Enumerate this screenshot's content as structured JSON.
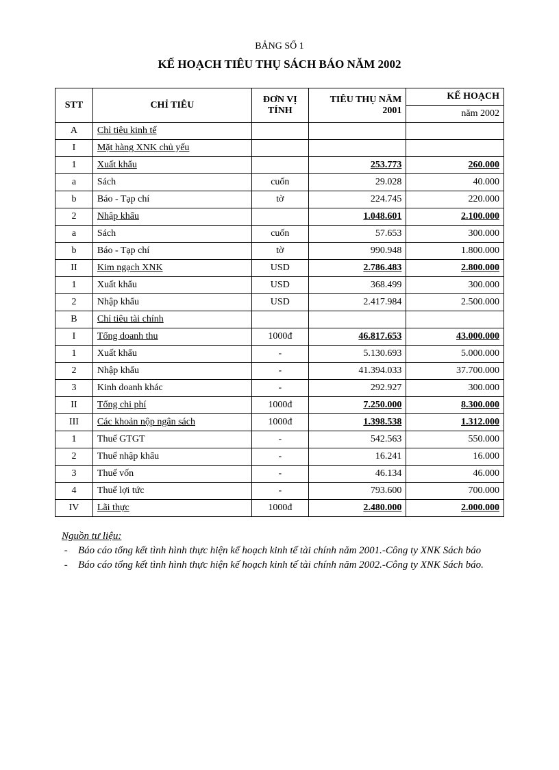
{
  "tableNumber": "BẢNG SỐ 1",
  "title": "KẾ HOẠCH TIÊU THỤ SÁCH BÁO NĂM 2002",
  "headers": {
    "stt": "STT",
    "chitieu": "CHỈ TIÊU",
    "donvi": "ĐƠN VỊ TÍNH",
    "tieuthu": "TIÊU THỤ NĂM 2001",
    "kehoach": "KẾ HOẠCH",
    "kehoachSub": "năm 2002"
  },
  "rows": [
    {
      "stt": "A",
      "ct": "Chỉ tiêu kinh tế",
      "dv": "",
      "v1": "",
      "v2": "",
      "u": true,
      "b": false
    },
    {
      "stt": "I",
      "ct": "Mặt hàng XNK chủ yếu",
      "dv": "",
      "v1": "",
      "v2": "",
      "u": true,
      "b": false
    },
    {
      "stt": "1",
      "ct": "Xuất khẩu",
      "dv": "",
      "v1": "253.773",
      "v2": "260.000",
      "u": true,
      "b": true
    },
    {
      "stt": "a",
      "ct": "Sách",
      "dv": "cuốn",
      "v1": "29.028",
      "v2": "40.000",
      "u": false,
      "b": false
    },
    {
      "stt": "b",
      "ct": "Báo - Tạp chí",
      "dv": "tờ",
      "v1": "224.745",
      "v2": "220.000",
      "u": false,
      "b": false
    },
    {
      "stt": "2",
      "ct": "Nhập khẩu",
      "dv": "",
      "v1": "1.048.601",
      "v2": "2.100.000",
      "u": true,
      "b": true
    },
    {
      "stt": "a",
      "ct": "Sách",
      "dv": "cuốn",
      "v1": "57.653",
      "v2": "300.000",
      "u": false,
      "b": false
    },
    {
      "stt": "b",
      "ct": "Báo - Tạp chí",
      "dv": "tờ",
      "v1": "990.948",
      "v2": "1.800.000",
      "u": false,
      "b": false
    },
    {
      "stt": "II",
      "ct": "Kim ngạch XNK",
      "dv": "USD",
      "v1": "2.786.483",
      "v2": "2.800.000",
      "u": true,
      "b": true
    },
    {
      "stt": "1",
      "ct": "Xuất khẩu",
      "dv": "USD",
      "v1": "368.499",
      "v2": "300.000",
      "u": false,
      "b": false
    },
    {
      "stt": "2",
      "ct": "Nhập khẩu",
      "dv": "USD",
      "v1": "2.417.984",
      "v2": "2.500.000",
      "u": false,
      "b": false
    },
    {
      "stt": "B",
      "ct": "Chỉ tiêu tài chính",
      "dv": "",
      "v1": "",
      "v2": "",
      "u": true,
      "b": false
    },
    {
      "stt": "I",
      "ct": "Tổng doanh thu",
      "dv": "1000đ",
      "v1": "46.817.653",
      "v2": "43.000.000",
      "u": true,
      "b": true
    },
    {
      "stt": "1",
      "ct": "Xuất khẩu",
      "dv": "-",
      "v1": "5.130.693",
      "v2": "5.000.000",
      "u": false,
      "b": false
    },
    {
      "stt": "2",
      "ct": "Nhập khẩu",
      "dv": "-",
      "v1": "41.394.033",
      "v2": "37.700.000",
      "u": false,
      "b": false
    },
    {
      "stt": "3",
      "ct": "Kinh doanh khác",
      "dv": "-",
      "v1": "292.927",
      "v2": "300.000",
      "u": false,
      "b": false
    },
    {
      "stt": "II",
      "ct": "Tổng chi phí",
      "dv": "1000đ",
      "v1": "7.250.000",
      "v2": "8.300.000",
      "u": true,
      "b": true
    },
    {
      "stt": "III",
      "ct": "Các khoản nộp ngân sách",
      "dv": "1000đ",
      "v1": "1.398.538",
      "v2": "1.312.000",
      "u": true,
      "b": true
    },
    {
      "stt": "1",
      "ct": "Thuế GTGT",
      "dv": "-",
      "v1": "542.563",
      "v2": "550.000",
      "u": false,
      "b": false
    },
    {
      "stt": "2",
      "ct": "Thuế nhập khẩu",
      "dv": "-",
      "v1": "16.241",
      "v2": "16.000",
      "u": false,
      "b": false
    },
    {
      "stt": "3",
      "ct": "Thuế vốn",
      "dv": "-",
      "v1": "46.134",
      "v2": "46.000",
      "u": false,
      "b": false
    },
    {
      "stt": "4",
      "ct": "Thuế lợi tức",
      "dv": "-",
      "v1": "793.600",
      "v2": "700.000",
      "u": false,
      "b": false
    },
    {
      "stt": "IV",
      "ct": "Lãi thực",
      "dv": "1000đ",
      "v1": "2.480.000",
      "v2": "2.000.000",
      "u": true,
      "b": true
    }
  ],
  "source": {
    "title": "Nguồn tư liệu:",
    "items": [
      "Báo cáo tổng kết tình hình thực hiện kế hoạch kinh tế tài chính năm 2001.-Công ty XNK Sách báo",
      "Báo cáo tổng kết tình hình thực hiện kế hoạch kinh tế tài chính năm 2002.-Công ty XNK Sách báo."
    ]
  }
}
